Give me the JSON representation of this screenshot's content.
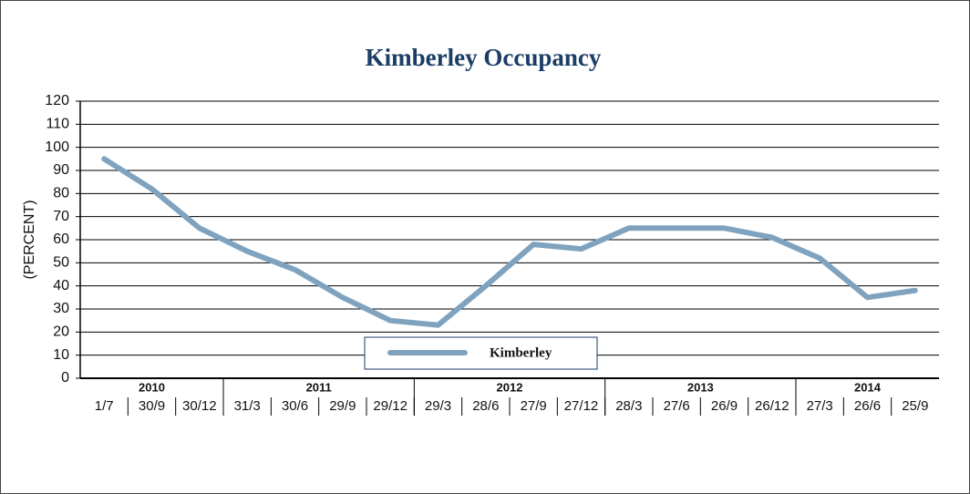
{
  "chart_data": {
    "type": "line",
    "title": "Kimberley Occupancy",
    "y_label": "(PERCENT)",
    "categories": [
      "1/7",
      "30/9",
      "30/12",
      "31/3",
      "30/6",
      "29/9",
      "29/12",
      "29/3",
      "28/6",
      "27/9",
      "27/12",
      "28/3",
      "27/6",
      "26/9",
      "26/12",
      "27/3",
      "26/6",
      "25/9"
    ],
    "category_groups": [
      {
        "label": "2010",
        "count": 3
      },
      {
        "label": "2011",
        "count": 4
      },
      {
        "label": "2012",
        "count": 4
      },
      {
        "label": "2013",
        "count": 4
      },
      {
        "label": "2014",
        "count": 3
      }
    ],
    "series": [
      {
        "name": "Kimberley",
        "color": "#7fa3bf",
        "values": [
          95,
          82,
          65,
          55,
          47,
          35,
          25,
          23,
          40,
          58,
          56,
          65,
          65,
          65,
          61,
          52,
          35,
          38
        ]
      }
    ],
    "ylim": [
      0,
      120
    ],
    "yticks": [
      0,
      10,
      20,
      30,
      40,
      50,
      60,
      70,
      80,
      90,
      100,
      110,
      120
    ],
    "grid": true,
    "legend": "bottom"
  }
}
